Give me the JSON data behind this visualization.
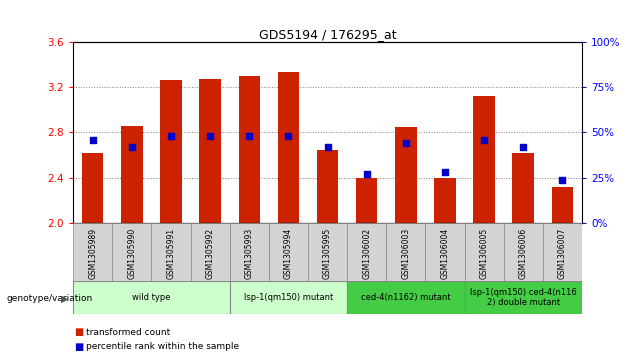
{
  "title": "GDS5194 / 176295_at",
  "samples": [
    "GSM1305989",
    "GSM1305990",
    "GSM1305991",
    "GSM1305992",
    "GSM1305993",
    "GSM1305994",
    "GSM1305995",
    "GSM1306002",
    "GSM1306003",
    "GSM1306004",
    "GSM1306005",
    "GSM1306006",
    "GSM1306007"
  ],
  "bar_values": [
    2.62,
    2.86,
    3.26,
    3.27,
    3.3,
    3.33,
    2.65,
    2.4,
    2.85,
    2.4,
    3.12,
    2.62,
    2.32
  ],
  "dot_values": [
    46,
    42,
    48,
    48,
    48,
    48,
    42,
    27,
    44,
    28,
    46,
    42,
    24
  ],
  "bar_color": "#cc2200",
  "dot_color": "#0000cc",
  "ymin": 2.0,
  "ymax": 3.6,
  "yticks": [
    2.0,
    2.4,
    2.8,
    3.2,
    3.6
  ],
  "right_yticks": [
    0,
    25,
    50,
    75,
    100
  ],
  "right_yticklabels": [
    "0%",
    "25%",
    "50%",
    "75%",
    "100%"
  ],
  "groups": [
    {
      "label": "wild type",
      "start": 0,
      "end": 3,
      "color": "#ccffcc"
    },
    {
      "label": "lsp-1(qm150) mutant",
      "start": 4,
      "end": 6,
      "color": "#ccffcc"
    },
    {
      "label": "ced-4(n1162) mutant",
      "start": 7,
      "end": 9,
      "color": "#44cc44"
    },
    {
      "label": "lsp-1(qm150) ced-4(n116\n2) double mutant",
      "start": 10,
      "end": 12,
      "color": "#44cc44"
    }
  ],
  "group_label": "genotype/variation",
  "legend_items": [
    {
      "color": "#cc2200",
      "label": "transformed count"
    },
    {
      "color": "#0000cc",
      "label": "percentile rank within the sample"
    }
  ],
  "grid_lines": [
    2.4,
    2.8,
    3.2
  ],
  "bar_width": 0.55
}
